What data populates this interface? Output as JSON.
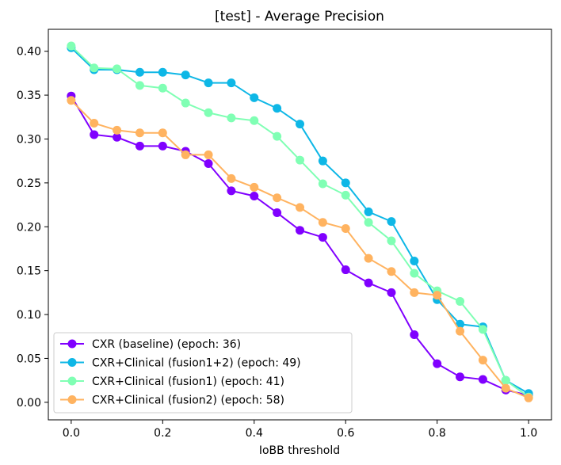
{
  "chart_data": {
    "type": "line",
    "title": "[test] - Average Precision",
    "xlabel": "IoBB threshold",
    "ylabel": "",
    "xlim": [
      -0.05,
      1.05
    ],
    "ylim": [
      -0.02,
      0.425
    ],
    "xticks": [
      0.0,
      0.2,
      0.4,
      0.6,
      0.8,
      1.0
    ],
    "xtick_labels": [
      "0.0",
      "0.2",
      "0.4",
      "0.6",
      "0.8",
      "1.0"
    ],
    "yticks": [
      0.0,
      0.05,
      0.1,
      0.15,
      0.2,
      0.25,
      0.3,
      0.35,
      0.4
    ],
    "ytick_labels": [
      "0.00",
      "0.05",
      "0.10",
      "0.15",
      "0.20",
      "0.25",
      "0.30",
      "0.35",
      "0.40"
    ],
    "grid": false,
    "legend_position": "lower-left",
    "x": [
      0.0,
      0.05,
      0.1,
      0.15,
      0.2,
      0.25,
      0.3,
      0.35,
      0.4,
      0.45,
      0.5,
      0.55,
      0.6,
      0.65,
      0.7,
      0.75,
      0.8,
      0.85,
      0.9,
      0.95,
      1.0
    ],
    "series": [
      {
        "name": "CXR (baseline) (epoch: 36)",
        "color": "#8000ff",
        "values": [
          0.349,
          0.305,
          0.302,
          0.292,
          0.292,
          0.286,
          0.272,
          0.241,
          0.235,
          0.216,
          0.196,
          0.188,
          0.151,
          0.136,
          0.125,
          0.077,
          0.044,
          0.029,
          0.026,
          0.014,
          0.008
        ]
      },
      {
        "name": "CXR+Clinical (fusion1+2) (epoch: 49)",
        "color": "#0eb7e6",
        "values": [
          0.404,
          0.379,
          0.379,
          0.376,
          0.376,
          0.373,
          0.364,
          0.364,
          0.347,
          0.335,
          0.317,
          0.275,
          0.25,
          0.217,
          0.206,
          0.161,
          0.117,
          0.089,
          0.086,
          0.025,
          0.01
        ]
      },
      {
        "name": "CXR+Clinical (fusion1) (epoch: 41)",
        "color": "#80ffb4",
        "values": [
          0.406,
          0.381,
          0.38,
          0.361,
          0.358,
          0.341,
          0.33,
          0.324,
          0.321,
          0.303,
          0.276,
          0.249,
          0.236,
          0.205,
          0.184,
          0.147,
          0.127,
          0.115,
          0.083,
          0.025,
          0.006
        ]
      },
      {
        "name": "CXR+Clinical (fusion2) (epoch: 58)",
        "color": "#ffb360",
        "values": [
          0.344,
          0.318,
          0.31,
          0.307,
          0.307,
          0.282,
          0.282,
          0.255,
          0.245,
          0.233,
          0.222,
          0.205,
          0.198,
          0.164,
          0.149,
          0.125,
          0.122,
          0.081,
          0.048,
          0.016,
          0.005
        ]
      }
    ]
  }
}
